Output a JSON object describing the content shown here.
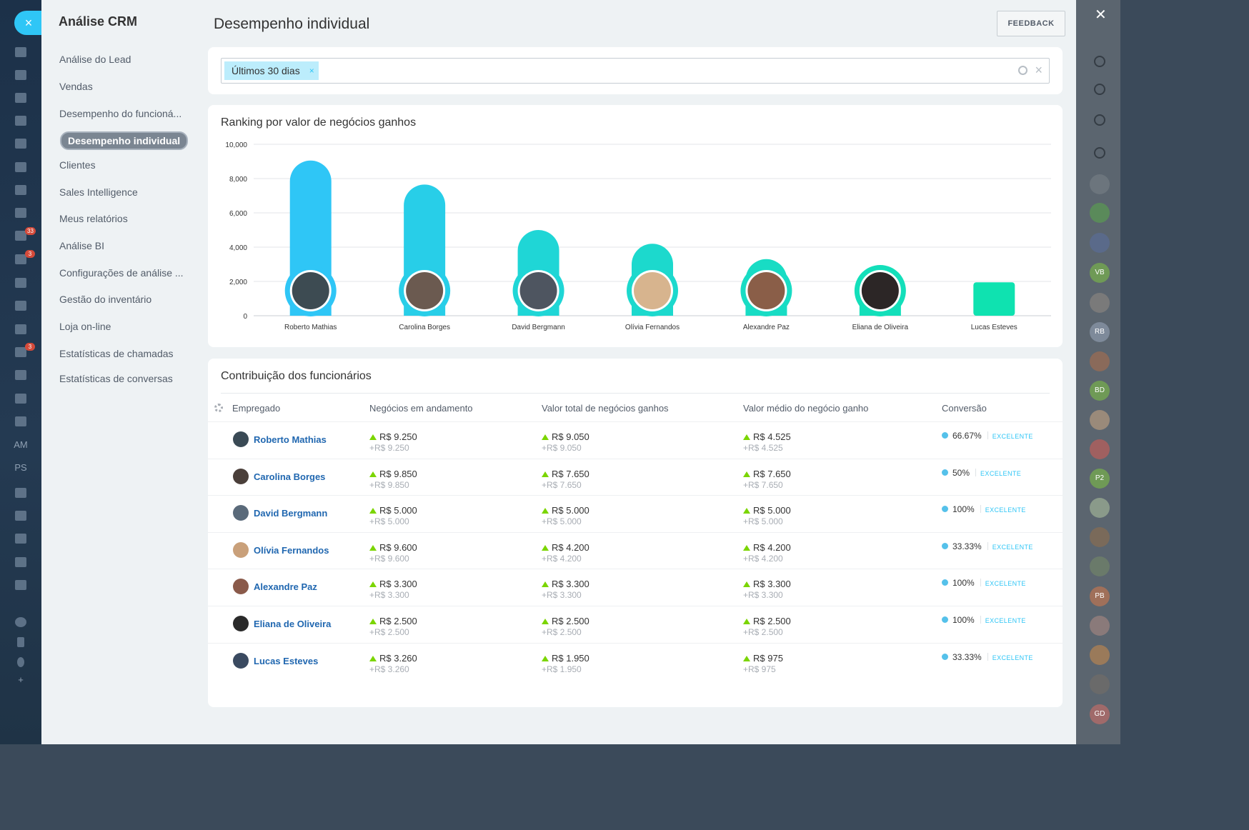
{
  "window": {
    "close_icon": "close-icon"
  },
  "left_rail": {
    "badges": [
      "33",
      "3",
      "3"
    ],
    "text_items": [
      "AM",
      "PS"
    ]
  },
  "nav": {
    "title": "Análise CRM",
    "items": [
      "Análise do Lead",
      "Vendas",
      "Desempenho do funcioná...",
      "Desempenho individual",
      "Clientes",
      "Sales Intelligence",
      "Meus relatórios",
      "Análise BI",
      "Configurações de análise ...",
      "Gestão do inventário",
      "Loja on-line",
      "Estatísticas de chamadas",
      "Estatísticas de conversas"
    ],
    "active_index": 3
  },
  "header": {
    "title": "Desempenho individual",
    "feedback_label": "FEEDBACK"
  },
  "filter": {
    "tag_label": "Últimos 30 dias",
    "tag_close": "×",
    "clear": "×"
  },
  "chart": {
    "title": "Ranking por valor de negócios ganhos"
  },
  "chart_data": {
    "type": "bar",
    "title": "Ranking por valor de negócios ganhos",
    "categories": [
      "Roberto Mathias",
      "Carolina Borges",
      "David Bergmann",
      "Olívia Fernandos",
      "Alexandre Paz",
      "Eliana de Oliveira",
      "Lucas Esteves"
    ],
    "values": [
      9050,
      7650,
      5000,
      4200,
      3300,
      2500,
      1950
    ],
    "ylim": [
      0,
      10000
    ],
    "yticks": [
      "0",
      "2,000",
      "4,000",
      "6,000",
      "8,000",
      "10,000"
    ],
    "colors": [
      "#2fc6f6",
      "#28cee8",
      "#1fd6d6",
      "#1cd9cd",
      "#18dcc4",
      "#13dfba",
      "#0fe2b0"
    ],
    "grid": true
  },
  "table": {
    "title": "Contribuição dos funcionários",
    "columns": [
      "Empregado",
      "Negócios em andamento",
      "Valor total de negócios ganhos",
      "Valor médio do negócio ganho",
      "Conversão"
    ],
    "rows": [
      {
        "name": "Roberto Mathias",
        "in_progress": "R$ 9.250",
        "in_progress_sub": "+R$ 9.250",
        "total": "R$ 9.050",
        "total_sub": "+R$ 9.050",
        "avg": "R$ 4.525",
        "avg_sub": "+R$ 4.525",
        "conv": "66.67%",
        "rating": "EXCELENTE"
      },
      {
        "name": "Carolina Borges",
        "in_progress": "R$ 9.850",
        "in_progress_sub": "+R$ 9.850",
        "total": "R$ 7.650",
        "total_sub": "+R$ 7.650",
        "avg": "R$ 7.650",
        "avg_sub": "+R$ 7.650",
        "conv": "50%",
        "rating": "EXCELENTE"
      },
      {
        "name": "David Bergmann",
        "in_progress": "R$ 5.000",
        "in_progress_sub": "+R$ 5.000",
        "total": "R$ 5.000",
        "total_sub": "+R$ 5.000",
        "avg": "R$ 5.000",
        "avg_sub": "+R$ 5.000",
        "conv": "100%",
        "rating": "EXCELENTE"
      },
      {
        "name": "Olívia Fernandos",
        "in_progress": "R$ 9.600",
        "in_progress_sub": "+R$ 9.600",
        "total": "R$ 4.200",
        "total_sub": "+R$ 4.200",
        "avg": "R$ 4.200",
        "avg_sub": "+R$ 4.200",
        "conv": "33.33%",
        "rating": "EXCELENTE"
      },
      {
        "name": "Alexandre Paz",
        "in_progress": "R$ 3.300",
        "in_progress_sub": "+R$ 3.300",
        "total": "R$ 3.300",
        "total_sub": "+R$ 3.300",
        "avg": "R$ 3.300",
        "avg_sub": "+R$ 3.300",
        "conv": "100%",
        "rating": "EXCELENTE"
      },
      {
        "name": "Eliana de Oliveira",
        "in_progress": "R$ 2.500",
        "in_progress_sub": "+R$ 2.500",
        "total": "R$ 2.500",
        "total_sub": "+R$ 2.500",
        "avg": "R$ 2.500",
        "avg_sub": "+R$ 2.500",
        "conv": "100%",
        "rating": "EXCELENTE"
      },
      {
        "name": "Lucas Esteves",
        "in_progress": "R$ 3.260",
        "in_progress_sub": "+R$ 3.260",
        "total": "R$ 1.950",
        "total_sub": "+R$ 1.950",
        "avg": "R$ 975",
        "avg_sub": "+R$ 975",
        "conv": "33.33%",
        "rating": "EXCELENTE"
      }
    ]
  },
  "right_rail": {
    "avatar_initials": [
      "VB",
      "RB",
      "BD",
      "P2",
      "PB",
      "GD"
    ]
  }
}
